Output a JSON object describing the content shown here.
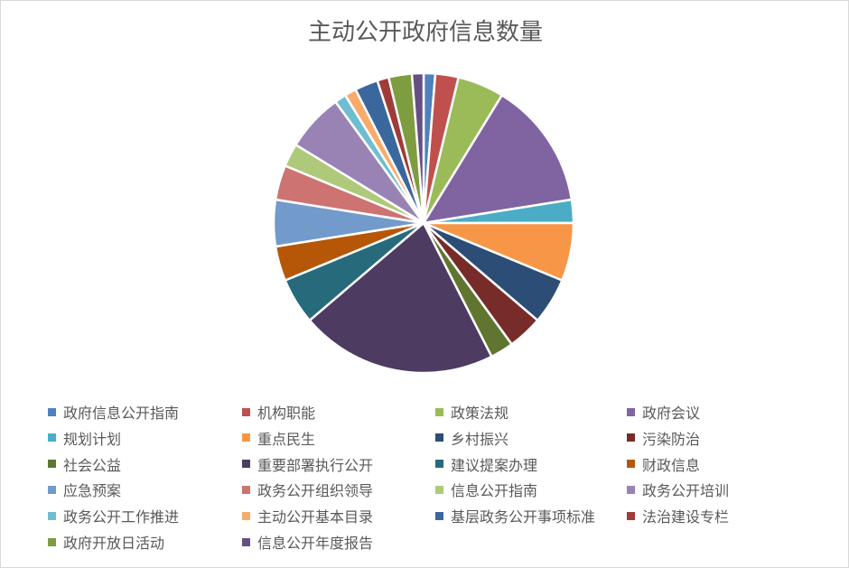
{
  "chart_data": {
    "type": "pie",
    "title": "主动公开政府信息数量",
    "legend_position": "bottom",
    "categories": [
      "政府信息公开指南",
      "机构职能",
      "政策法规",
      "政府会议",
      "规划计划",
      "重点民生",
      "乡村振兴",
      "污染防治",
      "社会公益",
      "重要部署执行公开",
      "建议提案办理",
      "财政信息",
      "应急预案",
      "政务公开组织领导",
      "信息公开指南",
      "政务公开培训",
      "政务公开工作推进",
      "主动公开基本目录",
      "基层政务公开事项标准",
      "法治建设专栏",
      "政府开放日活动",
      "信息公开年度报告"
    ],
    "values": [
      1,
      2,
      4,
      11,
      2,
      5,
      4,
      3,
      2,
      17,
      4,
      3,
      4,
      3,
      2,
      5,
      1,
      1,
      2,
      1,
      2,
      1
    ],
    "colors": [
      "#4F81BD",
      "#C0504D",
      "#9BBB59",
      "#8064A2",
      "#4BACC6",
      "#F79646",
      "#2C4D75",
      "#772C2A",
      "#5F7530",
      "#4D3B62",
      "#276A7C",
      "#B65708",
      "#729ACA",
      "#CD7371",
      "#AFC97A",
      "#9983B5",
      "#6FBDD1",
      "#F9AB6B",
      "#3A679C",
      "#9F3B38",
      "#7E9C40",
      "#664F83"
    ]
  }
}
